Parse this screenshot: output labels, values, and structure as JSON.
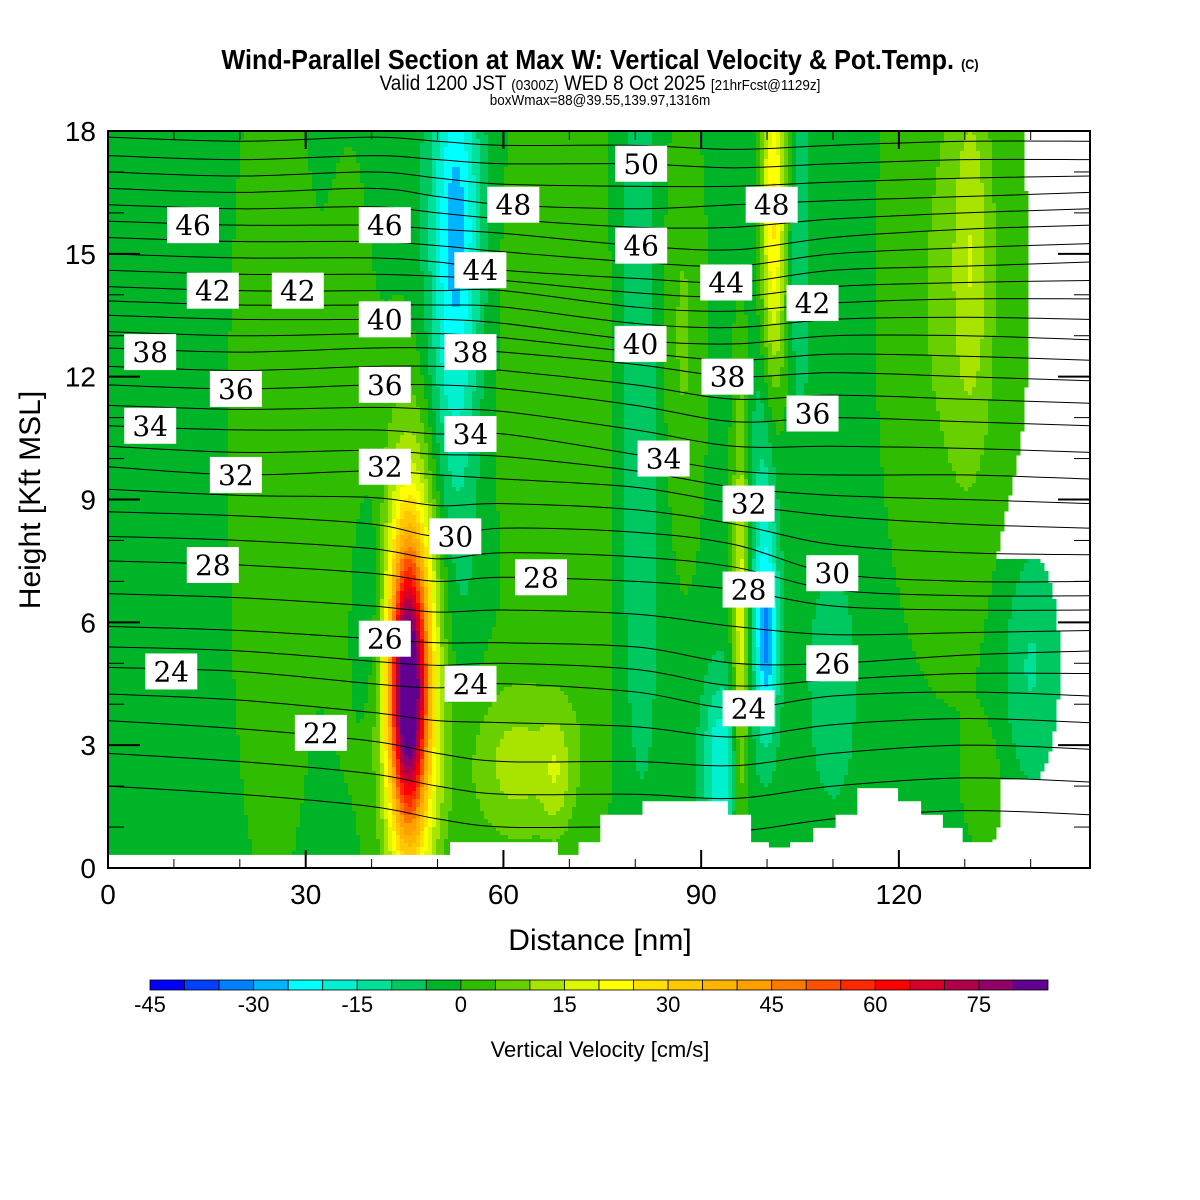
{
  "header": {
    "title": "Wind-Parallel Section at Max W: Vertical Velocity & Pot.Temp.",
    "copyright": "(C)",
    "valid_prefix": "Valid 1200 JST",
    "valid_utc": "(0300Z)",
    "valid_date": "WED 8 Oct 2025",
    "forecast": "[21hrFcst@1129z]",
    "box_info": "boxWmax=88@39.55,139.97,1316m"
  },
  "chart_data": {
    "type": "heatmap",
    "title": "Wind-Parallel Section at Max W: Vertical Velocity & Pot.Temp.",
    "xlabel": "Distance [nm]",
    "ylabel": "Height [Kft MSL]",
    "xlim": [
      0,
      149
    ],
    "ylim": [
      0,
      18
    ],
    "x_ticks": [
      0,
      30,
      60,
      90,
      120
    ],
    "y_ticks": [
      0,
      3,
      6,
      9,
      12,
      15,
      18
    ],
    "colorbar": {
      "label": "Vertical Velocity [cm/s]",
      "min": -45,
      "max": 85,
      "step": 5,
      "ticks": [
        -45,
        -30,
        -15,
        0,
        15,
        30,
        45,
        60,
        75
      ],
      "colors": [
        "#0000ff",
        "#0040ff",
        "#0080ff",
        "#00b4ff",
        "#00ffff",
        "#00f0d0",
        "#00e098",
        "#00c860",
        "#00b428",
        "#30bc00",
        "#68d000",
        "#a8e400",
        "#dcf800",
        "#ffff00",
        "#ffe000",
        "#ffc800",
        "#ffb400",
        "#ffa000",
        "#ff7800",
        "#ff5000",
        "#ff2800",
        "#ff0000",
        "#d80028",
        "#b00048",
        "#900068",
        "#600090"
      ]
    },
    "vertical_velocity": {
      "units": "cm/s",
      "background": -2,
      "features": [
        {
          "x": 45.5,
          "z": 4.3,
          "sx": 2.0,
          "sz": 2.4,
          "w": 70
        },
        {
          "x": 46.5,
          "z": 5.0,
          "sx": 3.4,
          "sz": 4.0,
          "w": 32
        },
        {
          "x": 25,
          "z": 10,
          "sx": 5,
          "sz": 8,
          "w": 5
        },
        {
          "x": 37,
          "z": 10,
          "sx": 3,
          "sz": 6,
          "w": 4
        },
        {
          "x": 53,
          "z": 16,
          "sx": 2.5,
          "sz": 3,
          "w": -20
        },
        {
          "x": 52,
          "z": 11,
          "sx": 3,
          "sz": 5,
          "w": -12
        },
        {
          "x": 40,
          "z": 6.5,
          "sx": 2,
          "sz": 2,
          "w": -8
        },
        {
          "x": 62,
          "z": 2.5,
          "sx": 6,
          "sz": 1.5,
          "w": 13
        },
        {
          "x": 68,
          "z": 2.3,
          "sx": 1.5,
          "sz": 1,
          "w": 8
        },
        {
          "x": 65,
          "z": 12,
          "sx": 8,
          "sz": 6,
          "w": 4
        },
        {
          "x": 75,
          "z": 10,
          "sx": 4,
          "sz": 7,
          "w": 6
        },
        {
          "x": 80,
          "z": 11,
          "sx": 3,
          "sz": 7,
          "w": -10
        },
        {
          "x": 87,
          "z": 13,
          "sx": 2.5,
          "sz": 4,
          "w": 8
        },
        {
          "x": 93,
          "z": 2.5,
          "sx": 2,
          "sz": 1.5,
          "w": -18
        },
        {
          "x": 96,
          "z": 6,
          "sx": 0.9,
          "sz": 4,
          "w": 20
        },
        {
          "x": 100,
          "z": 5.5,
          "sx": 1.2,
          "sz": 1.5,
          "w": -22
        },
        {
          "x": 99.5,
          "z": 8,
          "sx": 1.5,
          "sz": 3,
          "w": -12
        },
        {
          "x": 101,
          "z": 16,
          "sx": 1.3,
          "sz": 3,
          "w": 28
        },
        {
          "x": 105,
          "z": 15,
          "sx": 1,
          "sz": 3,
          "w": -8
        },
        {
          "x": 110,
          "z": 4.5,
          "sx": 2.5,
          "sz": 2,
          "w": -8
        },
        {
          "x": 128,
          "z": 14,
          "sx": 7,
          "sz": 6,
          "w": 8
        },
        {
          "x": 131,
          "z": 15,
          "sx": 2,
          "sz": 3,
          "w": 10
        },
        {
          "x": 140,
          "z": 5,
          "sx": 3,
          "sz": 2,
          "w": -9
        },
        {
          "x": 133,
          "z": 2,
          "sx": 2,
          "sz": 1,
          "w": 5
        }
      ]
    },
    "terrain_kft": [
      [
        0,
        51.9,
        0.32
      ],
      [
        51.9,
        68.2,
        0.63
      ],
      [
        68.2,
        71.4,
        0.32
      ],
      [
        71.4,
        74.7,
        0.63
      ],
      [
        74.7,
        81.1,
        1.3
      ],
      [
        81.1,
        94.0,
        1.63
      ],
      [
        94.0,
        97.5,
        1.3
      ],
      [
        97.5,
        100.2,
        0.63
      ],
      [
        100.2,
        103.5,
        0.32
      ],
      [
        103.5,
        107.0,
        0.63
      ],
      [
        107.0,
        110.4,
        0.98
      ],
      [
        110.4,
        113.7,
        1.3
      ],
      [
        113.7,
        119.8,
        1.95
      ],
      [
        119.8,
        123.3,
        1.63
      ],
      [
        123.3,
        126.6,
        1.3
      ],
      [
        126.6,
        129.6,
        0.98
      ],
      [
        129.6,
        136.2,
        0.63
      ],
      [
        136.2,
        149,
        0.32
      ]
    ],
    "pot_temp": {
      "x_nodes": [
        0,
        20,
        40,
        50,
        60,
        80,
        95,
        110,
        130,
        149
      ],
      "levels": [
        {
          "level": 22,
          "z": [
            3.6,
            3.4,
            3.1,
            2.8,
            2.6,
            2.6,
            2.5,
            2.8,
            3.0,
            2.9
          ]
        },
        {
          "level": 24,
          "z": [
            4.9,
            4.8,
            4.5,
            4.4,
            4.5,
            4.3,
            3.9,
            4.2,
            4.3,
            4.2
          ]
        },
        {
          "level": 26,
          "z": [
            5.9,
            5.8,
            5.6,
            5.5,
            5.5,
            5.4,
            5.0,
            5.0,
            5.2,
            5.3
          ]
        },
        {
          "level": 28,
          "z": [
            7.5,
            7.4,
            7.2,
            7.0,
            7.1,
            7.0,
            6.8,
            6.4,
            6.3,
            6.3
          ]
        },
        {
          "level": 30,
          "z": [
            8.7,
            8.6,
            8.4,
            8.1,
            8.3,
            8.2,
            7.9,
            7.2,
            7.0,
            7.0
          ]
        },
        {
          "level": 32,
          "z": [
            9.8,
            9.6,
            9.7,
            9.6,
            9.5,
            9.3,
            8.9,
            8.6,
            8.4,
            8.3
          ]
        },
        {
          "level": 34,
          "z": [
            10.8,
            10.7,
            10.7,
            10.6,
            10.6,
            10.1,
            9.7,
            9.6,
            9.6,
            9.5
          ]
        },
        {
          "level": 36,
          "z": [
            11.8,
            11.7,
            11.8,
            11.8,
            11.7,
            11.3,
            10.9,
            11.0,
            10.9,
            10.8
          ]
        },
        {
          "level": 38,
          "z": [
            12.7,
            12.6,
            12.7,
            12.7,
            12.6,
            12.3,
            12.0,
            12.1,
            12.0,
            11.9
          ]
        },
        {
          "level": 40,
          "z": [
            13.5,
            13.4,
            13.4,
            13.4,
            13.3,
            12.9,
            12.8,
            13.0,
            13.0,
            12.9
          ]
        },
        {
          "level": 42,
          "z": [
            14.2,
            14.1,
            14.1,
            14.1,
            14.1,
            13.7,
            13.6,
            13.8,
            13.9,
            13.9
          ]
        },
        {
          "level": 44,
          "z": [
            15.0,
            14.9,
            14.9,
            14.8,
            14.6,
            14.4,
            14.3,
            14.6,
            14.7,
            14.8
          ]
        },
        {
          "level": 46,
          "z": [
            15.8,
            15.7,
            15.7,
            15.6,
            15.5,
            15.2,
            15.1,
            15.4,
            15.6,
            15.7
          ]
        },
        {
          "level": 48,
          "z": [
            16.6,
            16.5,
            16.6,
            16.4,
            16.2,
            16.1,
            16.2,
            16.3,
            16.4,
            16.5
          ]
        },
        {
          "level": 50,
          "z": [
            17.4,
            17.3,
            17.4,
            17.3,
            17.2,
            17.2,
            17.1,
            17.2,
            17.3,
            17.3
          ]
        }
      ],
      "labels": [
        {
          "text": "46",
          "x": 12.9,
          "z": 15.7
        },
        {
          "text": "46",
          "x": 42,
          "z": 15.7
        },
        {
          "text": "48",
          "x": 61.5,
          "z": 16.2
        },
        {
          "text": "50",
          "x": 80.9,
          "z": 17.2
        },
        {
          "text": "48",
          "x": 100.7,
          "z": 16.2
        },
        {
          "text": "44",
          "x": 56.5,
          "z": 14.6
        },
        {
          "text": "46",
          "x": 80.9,
          "z": 15.2
        },
        {
          "text": "44",
          "x": 93.8,
          "z": 14.3
        },
        {
          "text": "42",
          "x": 106.9,
          "z": 13.8
        },
        {
          "text": "42",
          "x": 15.9,
          "z": 14.1
        },
        {
          "text": "42",
          "x": 28.8,
          "z": 14.1
        },
        {
          "text": "40",
          "x": 42,
          "z": 13.4
        },
        {
          "text": "40",
          "x": 80.8,
          "z": 12.8
        },
        {
          "text": "38",
          "x": 6.4,
          "z": 12.6
        },
        {
          "text": "36",
          "x": 19.4,
          "z": 11.7
        },
        {
          "text": "36",
          "x": 42,
          "z": 11.8
        },
        {
          "text": "38",
          "x": 55,
          "z": 12.6
        },
        {
          "text": "38",
          "x": 94,
          "z": 12.0
        },
        {
          "text": "36",
          "x": 106.9,
          "z": 11.1
        },
        {
          "text": "34",
          "x": 6.4,
          "z": 10.8
        },
        {
          "text": "34",
          "x": 55,
          "z": 10.6
        },
        {
          "text": "34",
          "x": 84.3,
          "z": 10.0
        },
        {
          "text": "32",
          "x": 19.4,
          "z": 9.6
        },
        {
          "text": "32",
          "x": 42,
          "z": 9.8
        },
        {
          "text": "32",
          "x": 97.2,
          "z": 8.9
        },
        {
          "text": "30",
          "x": 52.7,
          "z": 8.1
        },
        {
          "text": "30",
          "x": 109.9,
          "z": 7.2
        },
        {
          "text": "28",
          "x": 15.9,
          "z": 7.4
        },
        {
          "text": "28",
          "x": 65.7,
          "z": 7.1
        },
        {
          "text": "28",
          "x": 97.2,
          "z": 6.8
        },
        {
          "text": "26",
          "x": 42,
          "z": 5.6
        },
        {
          "text": "26",
          "x": 109.9,
          "z": 5.0
        },
        {
          "text": "24",
          "x": 9.6,
          "z": 4.8
        },
        {
          "text": "24",
          "x": 55,
          "z": 4.5
        },
        {
          "text": "24",
          "x": 97.2,
          "z": 3.9
        },
        {
          "text": "22",
          "x": 32.3,
          "z": 3.3
        }
      ]
    }
  }
}
